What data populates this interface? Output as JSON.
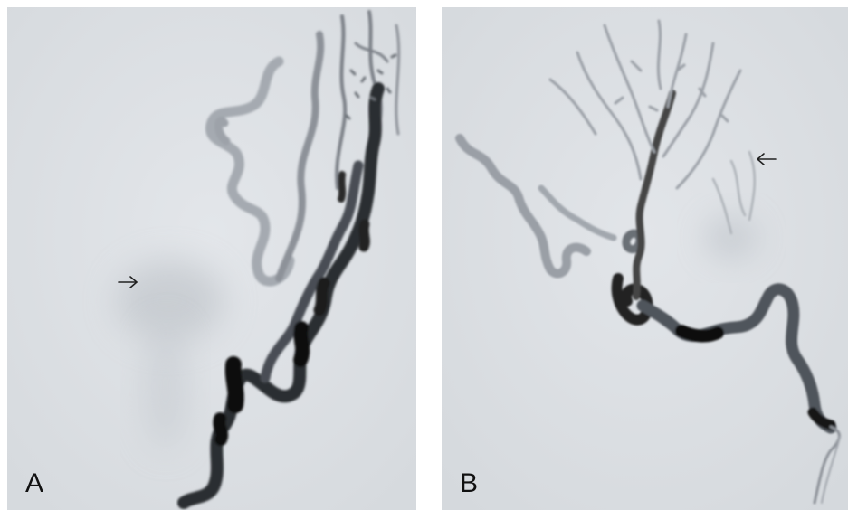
{
  "panels": [
    {
      "label": "A",
      "arrow_icon": "arrow-right-icon"
    },
    {
      "label": "B",
      "arrow_icon": "arrow-left-icon"
    }
  ],
  "colors": {
    "background": "#dde1e5",
    "vessel_dark": "#151515",
    "vessel_mid": "#6b7078",
    "vessel_light": "#a7acb3"
  }
}
